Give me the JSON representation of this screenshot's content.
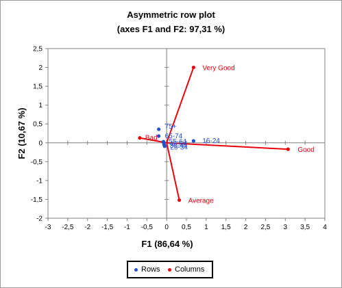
{
  "chart_data": {
    "type": "scatter",
    "title": "Asymmetric row plot",
    "subtitle": "(axes F1 and F2: 97,31 %)",
    "xlabel": "F1 (86,64 %)",
    "ylabel": "F2 (10,67 %)",
    "xlim": [
      -3,
      4
    ],
    "ylim": [
      -2,
      2.5
    ],
    "xticks": [
      -3,
      -2.5,
      -2,
      -1.5,
      -1,
      -0.5,
      0,
      0.5,
      1,
      1.5,
      2,
      2.5,
      3,
      3.5,
      4
    ],
    "yticks": [
      -2,
      -1.5,
      -1,
      -0.5,
      0,
      0.5,
      1,
      1.5,
      2,
      2.5
    ],
    "xtick_labels": [
      "-3",
      "-2,5",
      "-2",
      "-1,5",
      "-1",
      "-0,5",
      "0",
      "0,5",
      "1",
      "1,5",
      "2",
      "2,5",
      "3",
      "3,5",
      "4"
    ],
    "ytick_labels": [
      "-2",
      "-1,5",
      "-1",
      "-0,5",
      "0",
      "0,5",
      "1",
      "1,5",
      "2",
      "2,5"
    ],
    "grid": false,
    "legend_position": "bottom",
    "series": [
      {
        "name": "Rows",
        "color": "#1f4fd1",
        "points": [
          {
            "label": "75+",
            "x": -0.2,
            "y": 0.36
          },
          {
            "label": "65-74",
            "x": -0.2,
            "y": 0.18
          },
          {
            "label": "55-64",
            "x": -0.08,
            "y": 0.03
          },
          {
            "label": "45-54",
            "x": -0.07,
            "y": -0.02
          },
          {
            "label": "35-44",
            "x": -0.06,
            "y": -0.06
          },
          {
            "label": "25-34",
            "x": -0.05,
            "y": -0.09
          },
          {
            "label": "16-24",
            "x": 0.68,
            "y": 0.05
          }
        ]
      },
      {
        "name": "Columns",
        "color": "#e8000b",
        "points": [
          {
            "label": "Very Good",
            "x": 0.68,
            "y": 2.0
          },
          {
            "label": "Good",
            "x": 3.07,
            "y": -0.17
          },
          {
            "label": "Average",
            "x": 0.32,
            "y": -1.52
          },
          {
            "label": "Bad",
            "x": -0.68,
            "y": 0.13
          }
        ]
      }
    ]
  }
}
